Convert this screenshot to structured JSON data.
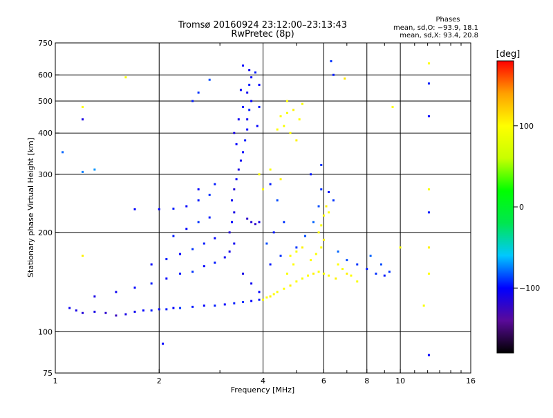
{
  "chart_data": {
    "type": "scatter",
    "title": "Tromsø 20160924 23:12:00–23:13:43",
    "subtitle": "RwPretec (8p)",
    "xlabel": "Frequency [MHz]",
    "ylabel": "Stationary phase Virtual Height [km]",
    "x_scale": "log",
    "y_scale": "log",
    "xlim": [
      1,
      16
    ],
    "ylim": [
      75,
      750
    ],
    "x_ticks": [
      1,
      2,
      4,
      6,
      8,
      10,
      16
    ],
    "x_tick_labels": [
      "1",
      "2",
      "4",
      "6",
      "8",
      "10",
      "16"
    ],
    "y_ticks": [
      75,
      100,
      200,
      300,
      400,
      500,
      600,
      750
    ],
    "y_tick_labels": [
      "75",
      "100",
      "200",
      "300",
      "400",
      "500",
      "600",
      "750"
    ],
    "grid": true,
    "colorbar": {
      "label": "[deg]",
      "min": -180,
      "max": 180,
      "ticks": [
        100,
        0,
        -100
      ],
      "tick_labels": [
        "100",
        "0",
        "−100"
      ],
      "colors": [
        "#000000",
        "#5a0a9a",
        "#0000ff",
        "#00c8ff",
        "#00e650",
        "#00ff00",
        "#c8ff00",
        "#ffff00",
        "#ffa000",
        "#ff0000"
      ]
    },
    "annotation": {
      "title": "Phases",
      "line_o": "mean, sd,O:  −93.9, 18.1",
      "line_x": "mean, sd,X:  93.4, 20.8"
    },
    "series": [
      {
        "points": [
          [
            1.1,
            118,
            -105
          ],
          [
            1.15,
            116,
            -110
          ],
          [
            1.2,
            114,
            -115
          ],
          [
            1.3,
            115,
            -110
          ],
          [
            1.4,
            114,
            -120
          ],
          [
            1.5,
            112,
            -125
          ],
          [
            1.6,
            113,
            -110
          ],
          [
            1.7,
            115,
            -105
          ],
          [
            1.8,
            116,
            -100
          ],
          [
            1.9,
            116,
            -95
          ],
          [
            2.0,
            117,
            -100
          ],
          [
            2.1,
            117,
            -95
          ],
          [
            2.2,
            118,
            -100
          ],
          [
            2.3,
            118,
            -90
          ],
          [
            2.5,
            119,
            -95
          ],
          [
            2.7,
            120,
            -100
          ],
          [
            2.9,
            120,
            -95
          ],
          [
            3.1,
            121,
            -100
          ],
          [
            3.3,
            122,
            -95
          ],
          [
            3.5,
            123,
            -90
          ],
          [
            3.7,
            124,
            -100
          ],
          [
            3.9,
            125,
            -95
          ],
          [
            1.3,
            128,
            -110
          ],
          [
            1.5,
            132,
            -105
          ],
          [
            1.7,
            136,
            -100
          ],
          [
            1.9,
            140,
            -95
          ],
          [
            2.1,
            145,
            -100
          ],
          [
            2.3,
            150,
            -95
          ],
          [
            2.5,
            152,
            -90
          ],
          [
            2.7,
            158,
            -100
          ],
          [
            2.9,
            162,
            -95
          ],
          [
            3.1,
            168,
            -105
          ],
          [
            1.9,
            160,
            -100
          ],
          [
            2.1,
            166,
            -95
          ],
          [
            2.3,
            172,
            -100
          ],
          [
            2.5,
            178,
            -90
          ],
          [
            2.7,
            185,
            -95
          ],
          [
            2.9,
            192,
            -100
          ],
          [
            2.2,
            195,
            -95
          ],
          [
            2.4,
            205,
            -100
          ],
          [
            2.6,
            215,
            -90
          ],
          [
            2.8,
            222,
            -95
          ],
          [
            2.0,
            235,
            -100
          ],
          [
            2.2,
            236,
            -95
          ],
          [
            2.4,
            240,
            -100
          ],
          [
            2.6,
            250,
            -95
          ],
          [
            2.8,
            260,
            -90
          ],
          [
            2.6,
            270,
            -100
          ],
          [
            2.9,
            280,
            -95
          ],
          [
            3.2,
            175,
            -110
          ],
          [
            3.3,
            185,
            -105
          ],
          [
            3.2,
            200,
            -115
          ],
          [
            3.25,
            215,
            -100
          ],
          [
            3.3,
            230,
            -110
          ],
          [
            3.25,
            250,
            -105
          ],
          [
            3.3,
            270,
            -115
          ],
          [
            3.35,
            290,
            -100
          ],
          [
            3.4,
            310,
            -110
          ],
          [
            3.45,
            330,
            -105
          ],
          [
            3.5,
            350,
            -100
          ],
          [
            3.55,
            380,
            -95
          ],
          [
            3.6,
            410,
            -100
          ],
          [
            3.6,
            440,
            -105
          ],
          [
            3.65,
            470,
            -95
          ],
          [
            3.7,
            500,
            -100
          ],
          [
            3.6,
            530,
            -105
          ],
          [
            3.65,
            560,
            -95
          ],
          [
            3.7,
            590,
            -100
          ],
          [
            3.65,
            620,
            -105
          ],
          [
            3.5,
            640,
            -100
          ],
          [
            3.8,
            610,
            -95
          ],
          [
            3.9,
            560,
            -100
          ],
          [
            3.9,
            480,
            -95
          ],
          [
            3.85,
            420,
            -100
          ],
          [
            3.4,
            440,
            -105
          ],
          [
            3.3,
            400,
            -110
          ],
          [
            3.35,
            370,
            -100
          ],
          [
            3.5,
            480,
            -95
          ],
          [
            3.45,
            540,
            -100
          ],
          [
            2.6,
            530,
            -90
          ],
          [
            2.8,
            580,
            -85
          ],
          [
            2.5,
            500,
            -95
          ],
          [
            3.6,
            220,
            -120
          ],
          [
            3.7,
            215,
            -115
          ],
          [
            3.8,
            212,
            -120
          ],
          [
            3.9,
            215,
            -110
          ],
          [
            3.5,
            150,
            -110
          ],
          [
            3.7,
            140,
            -105
          ],
          [
            3.9,
            132,
            -100
          ],
          [
            4.2,
            160,
            -95
          ],
          [
            4.5,
            170,
            -90
          ],
          [
            4.1,
            185,
            -85
          ],
          [
            4.3,
            200,
            -95
          ],
          [
            4.6,
            215,
            -90
          ],
          [
            4.4,
            250,
            -85
          ],
          [
            4.2,
            280,
            -95
          ],
          [
            5.0,
            180,
            -90
          ],
          [
            5.3,
            195,
            -85
          ],
          [
            5.6,
            215,
            -80
          ],
          [
            5.8,
            240,
            -85
          ],
          [
            5.9,
            270,
            -90
          ],
          [
            5.5,
            300,
            -95
          ],
          [
            5.9,
            320,
            -90
          ],
          [
            6.2,
            265,
            -95
          ],
          [
            6.4,
            250,
            -90
          ],
          [
            6.6,
            175,
            -80
          ],
          [
            7.0,
            165,
            -85
          ],
          [
            7.5,
            160,
            -90
          ],
          [
            8.0,
            155,
            -95
          ],
          [
            8.5,
            150,
            -90
          ],
          [
            9.0,
            148,
            -95
          ],
          [
            9.3,
            152,
            -90
          ],
          [
            8.8,
            160,
            -85
          ],
          [
            8.2,
            170,
            -80
          ],
          [
            12.1,
            450,
            -100
          ],
          [
            12.1,
            565,
            -95
          ],
          [
            12.1,
            85,
            -100
          ],
          [
            12.1,
            230,
            -95
          ],
          [
            1.2,
            440,
            -110
          ],
          [
            1.05,
            350,
            -80
          ],
          [
            1.3,
            310,
            -70
          ],
          [
            1.2,
            305,
            -75
          ],
          [
            1.7,
            235,
            -100
          ],
          [
            2.05,
            92,
            -100
          ],
          [
            6.4,
            600,
            -95
          ],
          [
            6.3,
            660,
            -90
          ]
        ]
      },
      {
        "points": [
          [
            4.0,
            125,
            95
          ],
          [
            4.1,
            127,
            100
          ],
          [
            4.2,
            128,
            105
          ],
          [
            4.3,
            130,
            100
          ],
          [
            4.4,
            132,
            95
          ],
          [
            4.6,
            135,
            100
          ],
          [
            4.8,
            138,
            105
          ],
          [
            5.0,
            142,
            100
          ],
          [
            5.2,
            145,
            95
          ],
          [
            5.4,
            148,
            100
          ],
          [
            5.6,
            150,
            105
          ],
          [
            5.8,
            152,
            100
          ],
          [
            6.0,
            150,
            95
          ],
          [
            6.2,
            148,
            100
          ],
          [
            6.5,
            145,
            105
          ],
          [
            5.5,
            165,
            100
          ],
          [
            5.7,
            172,
            95
          ],
          [
            5.9,
            180,
            100
          ],
          [
            6.0,
            190,
            105
          ],
          [
            5.8,
            200,
            100
          ],
          [
            5.9,
            210,
            95
          ],
          [
            6.0,
            225,
            100
          ],
          [
            6.1,
            240,
            105
          ],
          [
            6.2,
            230,
            100
          ],
          [
            4.8,
            170,
            100
          ],
          [
            5.0,
            175,
            95
          ],
          [
            5.2,
            180,
            105
          ],
          [
            4.9,
            160,
            100
          ],
          [
            4.7,
            150,
            95
          ],
          [
            6.6,
            160,
            100
          ],
          [
            6.8,
            155,
            95
          ],
          [
            7.0,
            150,
            105
          ],
          [
            7.2,
            148,
            100
          ],
          [
            7.5,
            142,
            95
          ],
          [
            4.5,
            450,
            100
          ],
          [
            4.7,
            460,
            95
          ],
          [
            4.9,
            470,
            105
          ],
          [
            5.1,
            440,
            100
          ],
          [
            4.6,
            420,
            95
          ],
          [
            4.8,
            400,
            100
          ],
          [
            5.0,
            380,
            105
          ],
          [
            4.4,
            410,
            100
          ],
          [
            5.2,
            490,
            95
          ],
          [
            4.7,
            500,
            100
          ],
          [
            3.9,
            300,
            100
          ],
          [
            4.2,
            310,
            95
          ],
          [
            4.5,
            290,
            105
          ],
          [
            4.0,
            270,
            100
          ],
          [
            11.7,
            120,
            95
          ],
          [
            12.1,
            150,
            100
          ],
          [
            12.1,
            180,
            105
          ],
          [
            12.1,
            270,
            95
          ],
          [
            12.1,
            650,
            100
          ],
          [
            10.0,
            180,
            95
          ],
          [
            9.5,
            480,
            100
          ],
          [
            1.6,
            590,
            95
          ],
          [
            1.2,
            480,
            100
          ],
          [
            1.2,
            170,
            105
          ],
          [
            6.9,
            585,
            110
          ]
        ]
      }
    ]
  }
}
